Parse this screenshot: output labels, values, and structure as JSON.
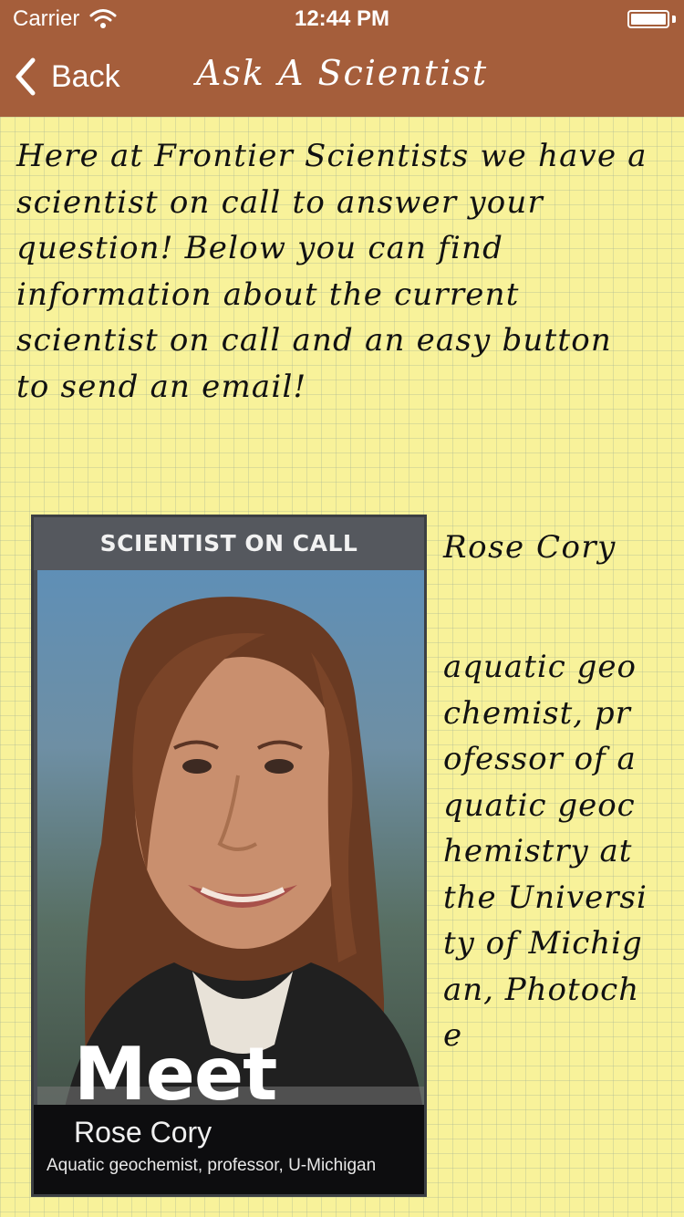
{
  "status_bar": {
    "carrier": "Carrier",
    "time": "12:44 PM"
  },
  "nav": {
    "back_label": "Back",
    "title": "Ask A Scientist"
  },
  "intro": {
    "text": "Here at Frontier Scientists we have a scientist on call to answer your question! Below you can find information about the current scientist on call and an easy button to send an email!"
  },
  "scientist_card": {
    "header": "SCIENTIST ON CALL",
    "meet": "Meet",
    "name": "Rose Cory",
    "subtitle": "Aquatic geochemist, professor, U-Michigan"
  },
  "scientist": {
    "name": "Rose Cory",
    "description": "aquatic geochemist, professor of aquatic geochemistry at the University of Michigan, Photoche"
  },
  "colors": {
    "nav_bar": "#a55e3b",
    "paper": "#f8f29a"
  }
}
